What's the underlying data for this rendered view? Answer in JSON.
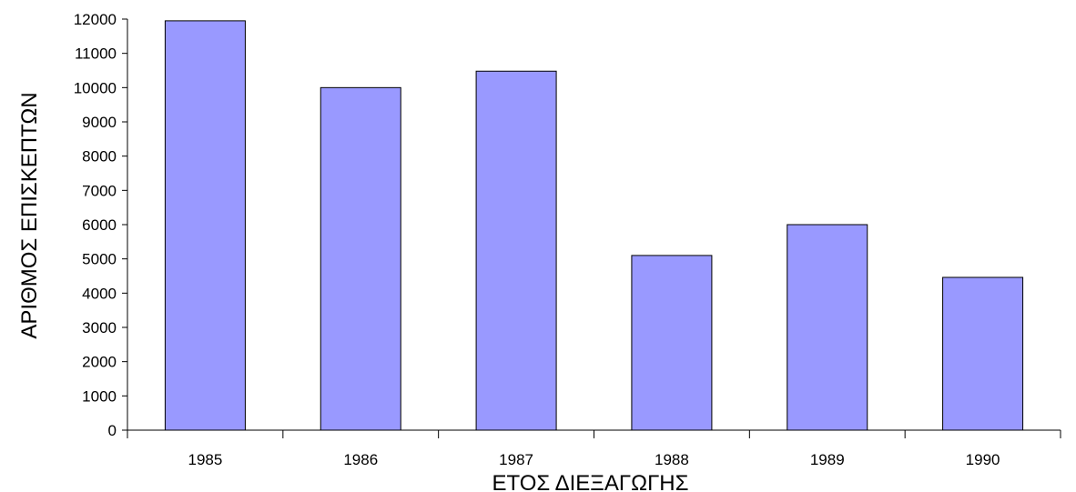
{
  "chart_data": {
    "type": "bar",
    "categories": [
      "1985",
      "1986",
      "1987",
      "1988",
      "1989",
      "1990"
    ],
    "values": [
      11950,
      10000,
      10480,
      5100,
      6000,
      4460
    ],
    "xlabel": "ΕΤΟΣ ΔΙΕΞΑΓΩΓΗΣ",
    "ylabel": "ΑΡΙΘΜΟΣ ΕΠΙΣΚΕΠΤΩΝ",
    "ylim": [
      0,
      12000
    ],
    "yticks": [
      "0",
      "1000",
      "2000",
      "3000",
      "4000",
      "5000",
      "6000",
      "7000",
      "8000",
      "9000",
      "10000",
      "11000",
      "12000"
    ],
    "grid": false,
    "legend": "none",
    "colors": {
      "bar_fill": "#9999ff",
      "bar_stroke": "#000000",
      "axis": "#000000"
    }
  }
}
